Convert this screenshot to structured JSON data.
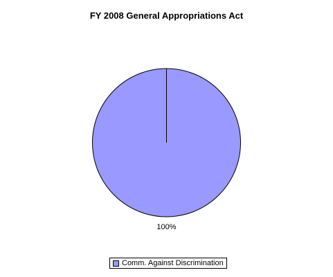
{
  "chart_data": {
    "type": "pie",
    "title": "FY 2008 General Appropriations Act",
    "slices": [
      {
        "label": "Comm. Against Discrimination",
        "value": 100,
        "display_label": "100%",
        "color": "#9999ff"
      }
    ],
    "legend_position": "bottom"
  }
}
